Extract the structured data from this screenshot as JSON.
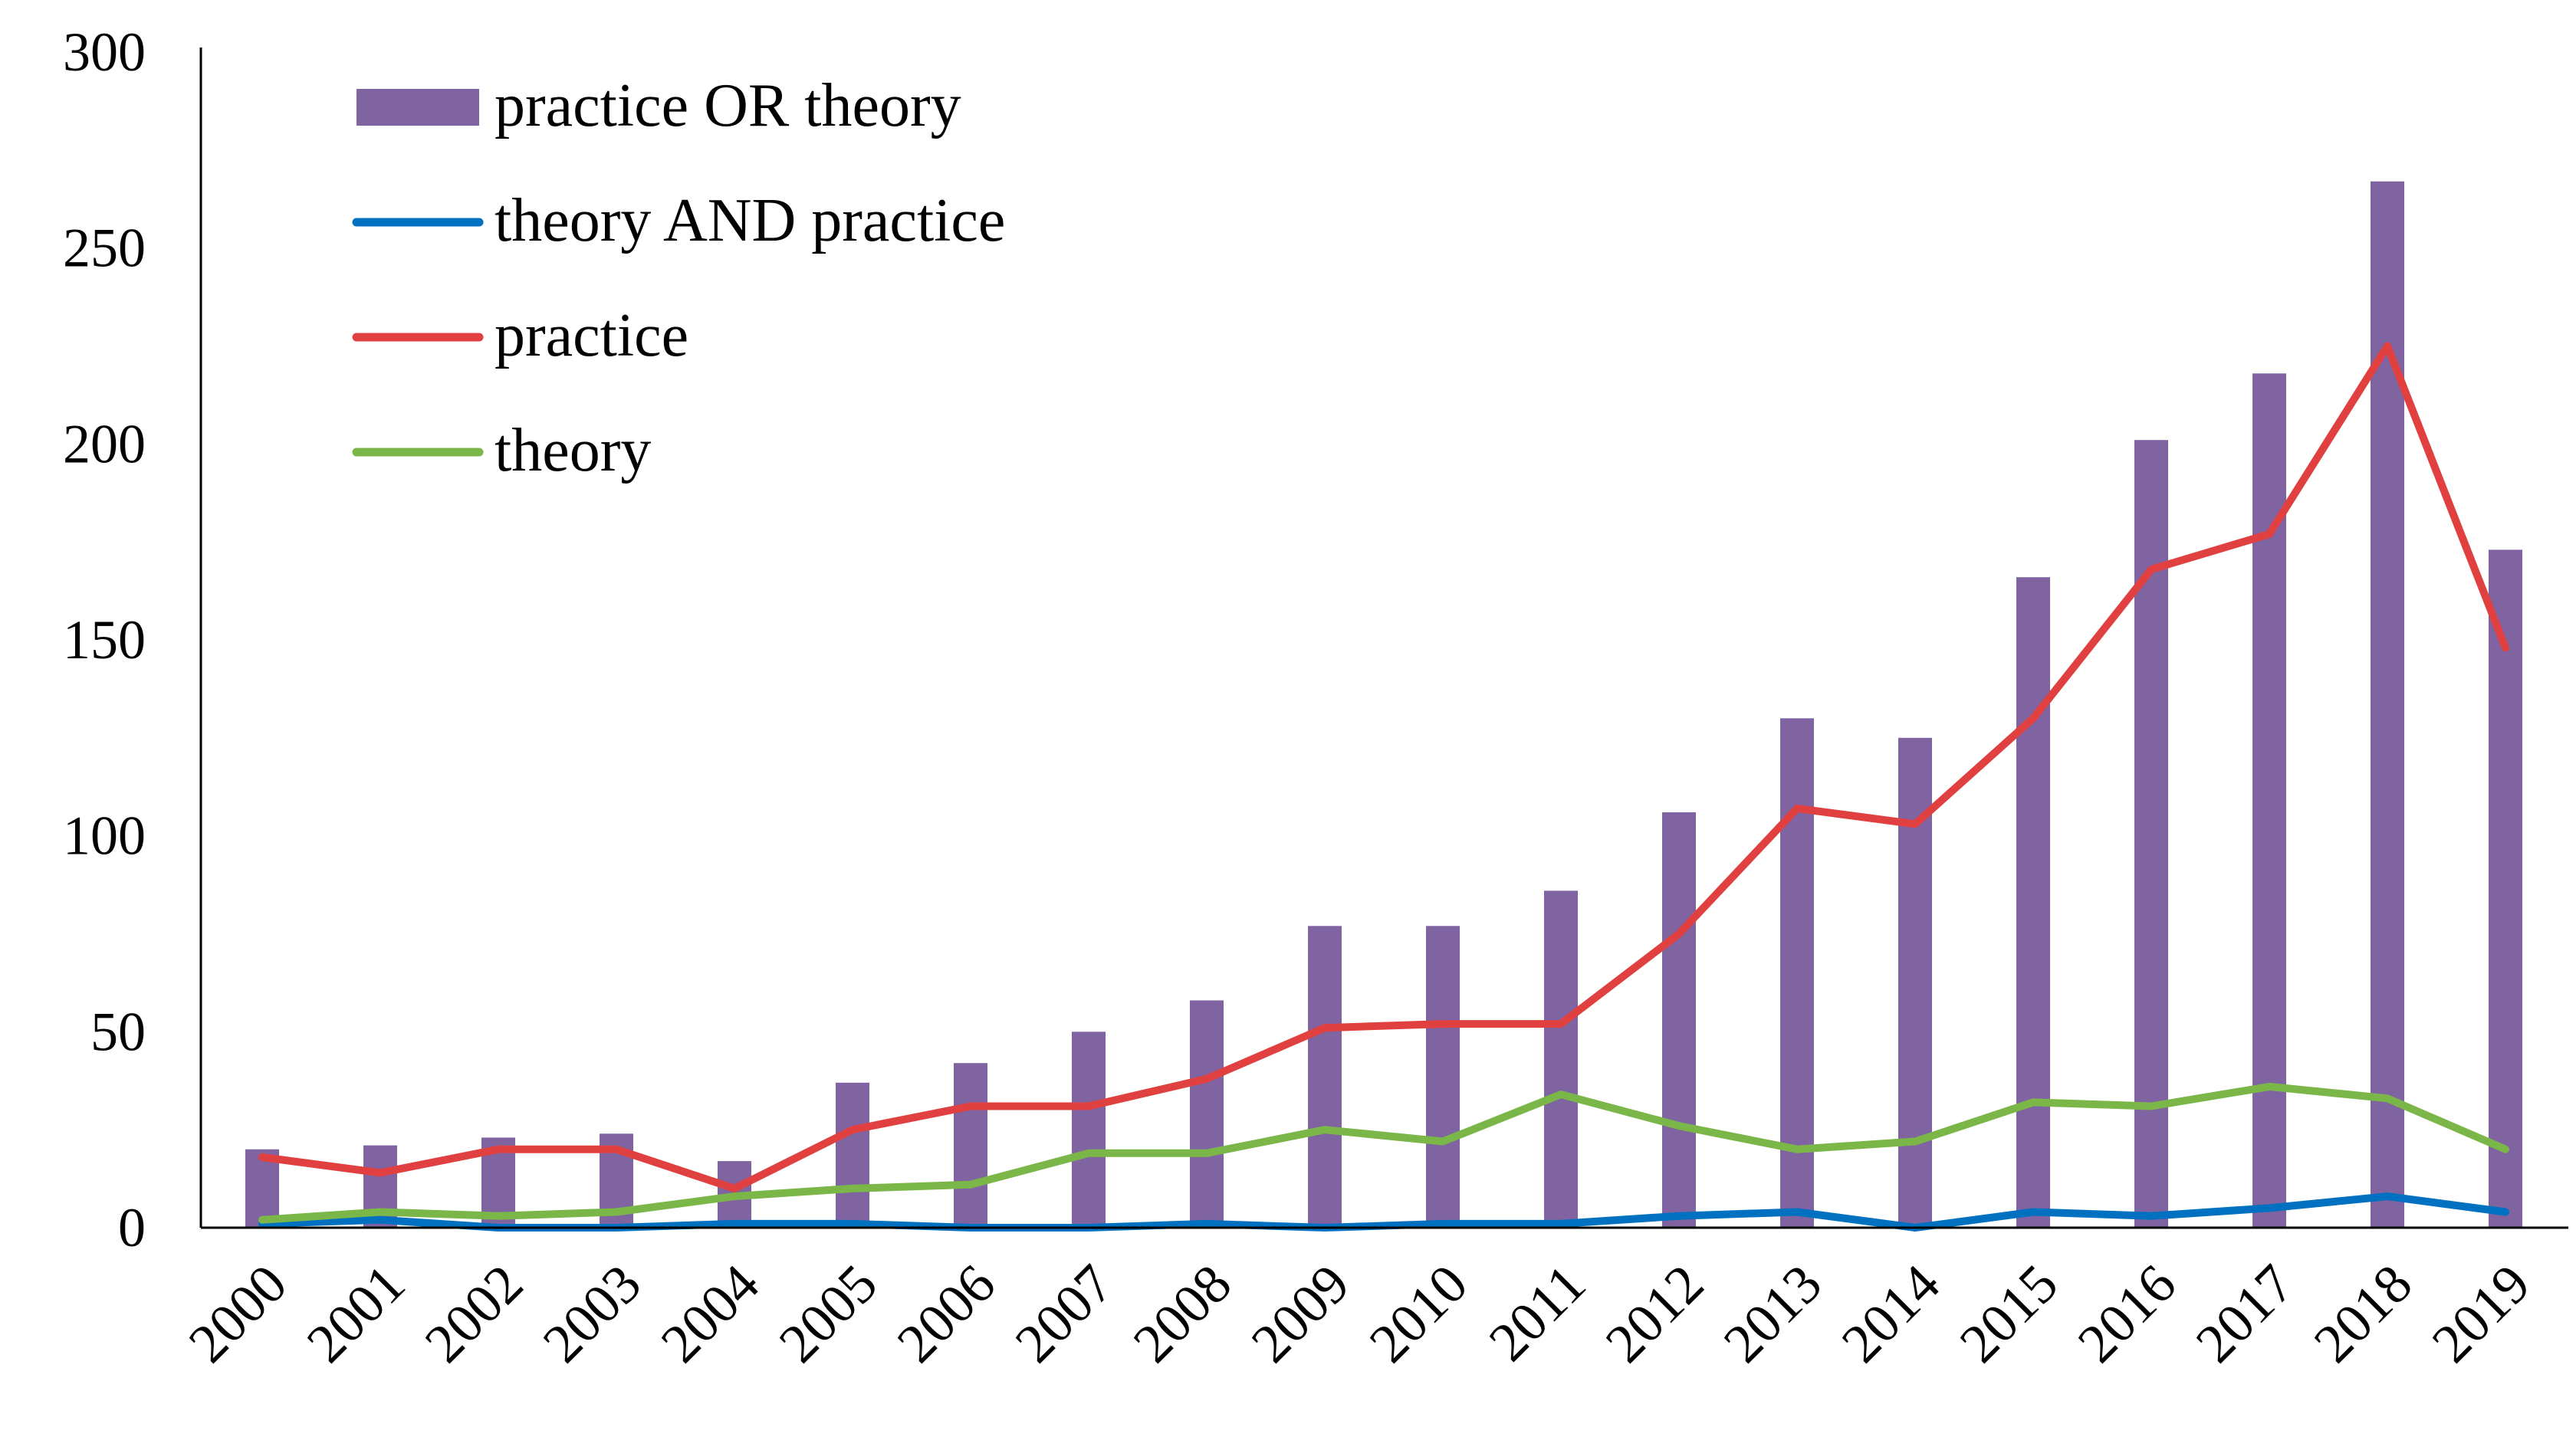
{
  "chart_data": {
    "type": "bar+line",
    "title": "",
    "xlabel": "",
    "ylabel": "",
    "ylim": [
      0,
      300
    ],
    "yticks": [
      0,
      50,
      100,
      150,
      200,
      250,
      300
    ],
    "grid": false,
    "legend_position": "top-left",
    "categories": [
      "2000",
      "2001",
      "2002",
      "2003",
      "2004",
      "2005",
      "2006",
      "2007",
      "2008",
      "2009",
      "2010",
      "2011",
      "2012",
      "2013",
      "2014",
      "2015",
      "2016",
      "2017",
      "2018",
      "2019"
    ],
    "series": [
      {
        "name": "practice OR theory",
        "kind": "bar",
        "color": "#8064a2",
        "values": [
          20,
          21,
          23,
          24,
          17,
          37,
          42,
          50,
          58,
          77,
          77,
          86,
          106,
          130,
          125,
          166,
          201,
          218,
          267,
          173
        ]
      },
      {
        "name": "theory AND practice",
        "kind": "line",
        "color": "#0070c0",
        "values": [
          1,
          2,
          0,
          0,
          1,
          1,
          0,
          0,
          1,
          0,
          1,
          1,
          3,
          4,
          0,
          4,
          3,
          5,
          8,
          4
        ]
      },
      {
        "name": "practice",
        "kind": "line",
        "color": "#e0403f",
        "values": [
          18,
          14,
          20,
          20,
          10,
          25,
          31,
          31,
          38,
          51,
          52,
          52,
          75,
          107,
          103,
          130,
          168,
          177,
          225,
          148
        ]
      },
      {
        "name": "theory",
        "kind": "line",
        "color": "#7ab648",
        "values": [
          2,
          4,
          3,
          4,
          8,
          10,
          11,
          19,
          19,
          25,
          22,
          34,
          26,
          20,
          22,
          32,
          31,
          36,
          33,
          20
        ]
      }
    ]
  }
}
